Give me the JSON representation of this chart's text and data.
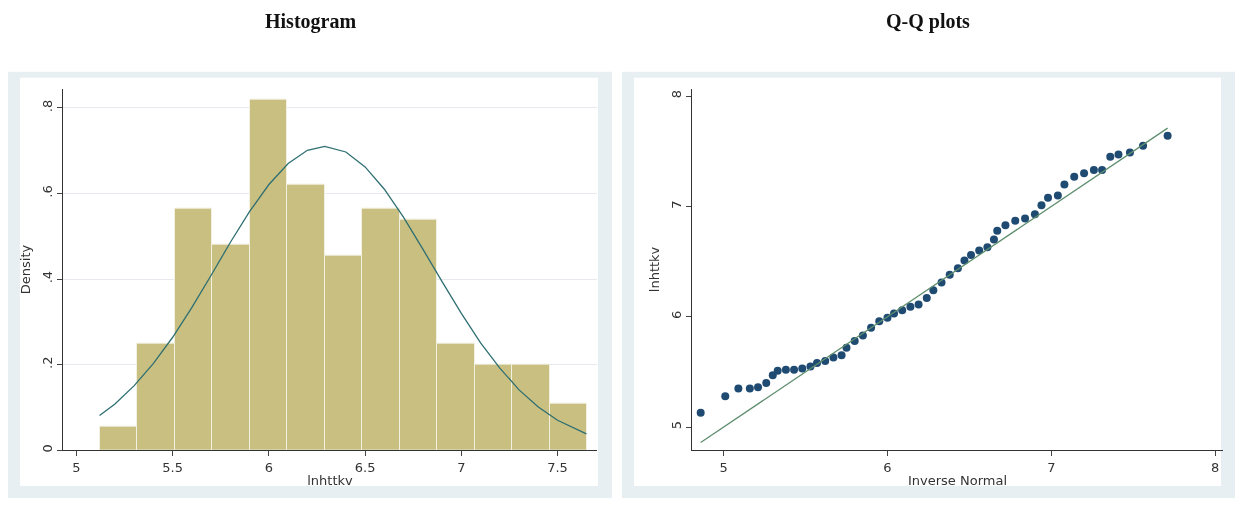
{
  "chart_data": [
    {
      "type": "histogram",
      "title": "Histogram",
      "xlabel": "lnhttkv",
      "ylabel": "Density",
      "bins": [
        5.12,
        5.315,
        5.51,
        5.705,
        5.9,
        6.095,
        6.29,
        6.485,
        6.68,
        6.875,
        7.07,
        7.265,
        7.46,
        7.655
      ],
      "values": [
        0.054,
        0.25,
        0.565,
        0.48,
        0.82,
        0.62,
        0.455,
        0.565,
        0.54,
        0.25,
        0.2,
        0.2,
        0.11
      ],
      "color": "#c8bf81",
      "series": [
        {
          "type": "line",
          "color": "#2f6f72",
          "x": [
            5.12,
            5.2,
            5.3,
            5.4,
            5.5,
            5.6,
            5.7,
            5.8,
            5.9,
            6.0,
            6.1,
            6.2,
            6.29,
            6.4,
            6.5,
            6.6,
            6.7,
            6.8,
            6.9,
            7.0,
            7.1,
            7.2,
            7.3,
            7.4,
            7.5,
            7.65
          ],
          "values": [
            0.081,
            0.108,
            0.151,
            0.203,
            0.264,
            0.334,
            0.409,
            0.486,
            0.558,
            0.621,
            0.67,
            0.701,
            0.71,
            0.697,
            0.662,
            0.61,
            0.544,
            0.47,
            0.394,
            0.32,
            0.251,
            0.192,
            0.141,
            0.101,
            0.07,
            0.038
          ]
        }
      ],
      "xlim": [
        4.93,
        7.705
      ],
      "ylim": [
        0,
        0.845
      ],
      "xticks": [
        5,
        5.5,
        6,
        6.5,
        7,
        7.5
      ],
      "yticks": [
        0,
        {
          "value": 0.2,
          "label": ".2"
        },
        {
          "value": 0.4,
          "label": ".4"
        },
        {
          "value": 0.6,
          "label": ".6"
        },
        {
          "value": 0.8,
          "label": ".8"
        }
      ],
      "grid": "y"
    },
    {
      "type": "scatter",
      "title": "Q-Q plots",
      "xlabel": "Inverse Normal",
      "ylabel": "lnhttkv",
      "series": [
        {
          "type": "scatter",
          "color": "#1f4b73",
          "marker": "circle",
          "x": [
            4.86,
            5.01,
            5.09,
            5.16,
            5.21,
            5.26,
            5.3,
            5.33,
            5.38,
            5.43,
            5.48,
            5.53,
            5.57,
            5.62,
            5.67,
            5.72,
            5.75,
            5.8,
            5.85,
            5.9,
            5.95,
            6.0,
            6.04,
            6.09,
            6.14,
            6.19,
            6.24,
            6.28,
            6.33,
            6.38,
            6.43,
            6.47,
            6.51,
            6.56,
            6.61,
            6.65,
            6.67,
            6.72,
            6.78,
            6.84,
            6.9,
            6.94,
            6.98,
            7.04,
            7.08,
            7.14,
            7.2,
            7.26,
            7.31,
            7.36,
            7.41,
            7.48,
            7.56,
            7.71
          ],
          "values": [
            5.13,
            5.28,
            5.35,
            5.35,
            5.36,
            5.4,
            5.47,
            5.51,
            5.52,
            5.52,
            5.53,
            5.55,
            5.58,
            5.6,
            5.63,
            5.65,
            5.72,
            5.78,
            5.83,
            5.9,
            5.96,
            5.99,
            6.03,
            6.06,
            6.09,
            6.11,
            6.17,
            6.24,
            6.31,
            6.38,
            6.44,
            6.51,
            6.56,
            6.6,
            6.63,
            6.7,
            6.78,
            6.83,
            6.87,
            6.89,
            6.93,
            7.01,
            7.08,
            7.1,
            7.2,
            7.27,
            7.3,
            7.33,
            7.33,
            7.45,
            7.47,
            7.49,
            7.55,
            7.64
          ]
        },
        {
          "type": "line",
          "color": "#5f8f6f",
          "marker": "none",
          "x": [
            4.86,
            7.71
          ],
          "values": [
            4.86,
            7.71
          ]
        }
      ],
      "xlim": [
        4.807,
        8.048
      ],
      "ylim": [
        4.79,
        8.068
      ],
      "xticks": [
        5,
        6,
        7,
        8
      ],
      "yticks": [
        5,
        6,
        7,
        8
      ],
      "grid": false
    }
  ]
}
